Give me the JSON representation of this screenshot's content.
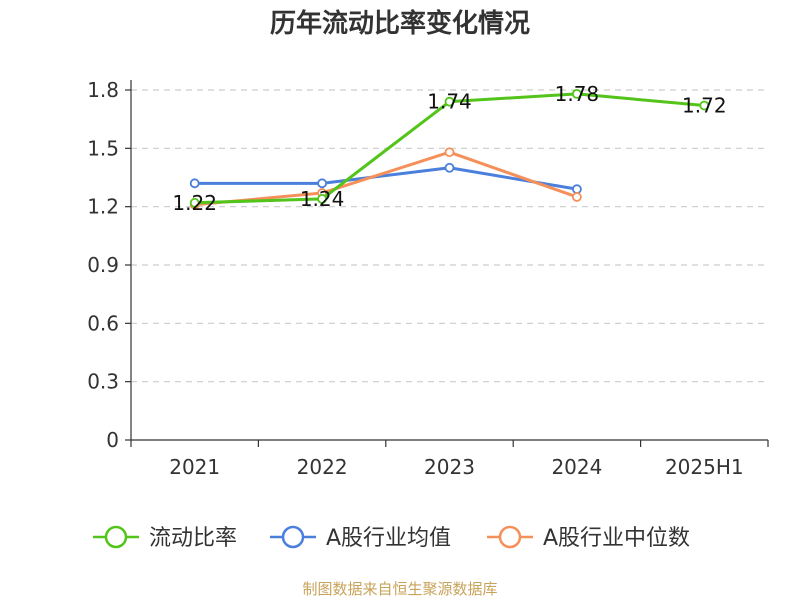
{
  "chart_data": {
    "type": "line",
    "title": "历年流动比率变化情况",
    "categories": [
      "2021",
      "2022",
      "2023",
      "2024",
      "2025H1"
    ],
    "y_ticks": [
      "0",
      "0.3",
      "0.6",
      "0.9",
      "1.2",
      "1.5",
      "1.8"
    ],
    "ylim": [
      0,
      1.8
    ],
    "grid": true,
    "legend_position": "bottom",
    "series": [
      {
        "name": "流动比率",
        "color": "#52c41a",
        "values": [
          1.22,
          1.24,
          1.74,
          1.78,
          1.72
        ],
        "labels": [
          "1.22",
          "1.24",
          "1.74",
          "1.78",
          "1.72"
        ]
      },
      {
        "name": "A股行业均值",
        "color": "#4a7fdc",
        "values": [
          1.32,
          1.32,
          1.4,
          1.29,
          null
        ],
        "labels": []
      },
      {
        "name": "A股行业中位数",
        "color": "#f5905a",
        "values": [
          1.21,
          1.27,
          1.48,
          1.25,
          null
        ],
        "labels": []
      }
    ],
    "source": "制图数据来自恒生聚源数据库"
  }
}
